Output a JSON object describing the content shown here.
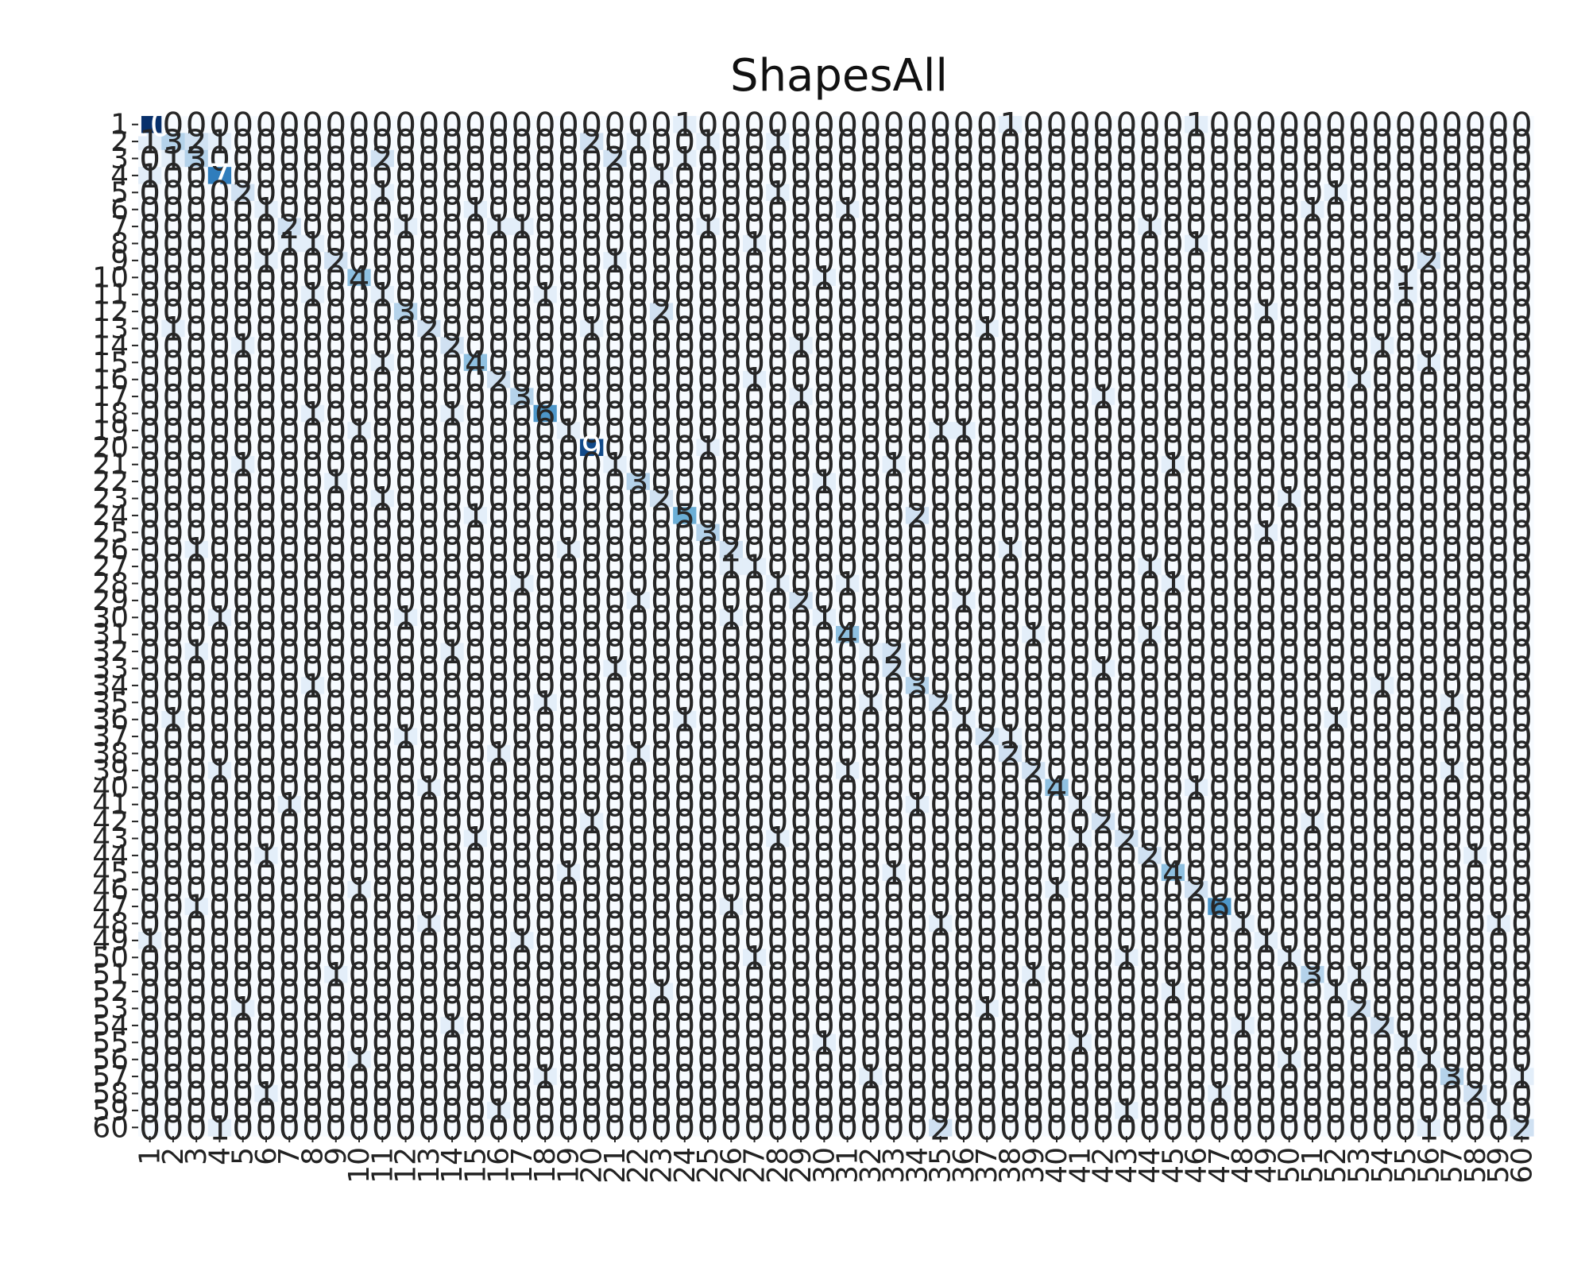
{
  "chart_data": {
    "type": "heatmap",
    "title": "ShapesAll",
    "xlabel": "",
    "ylabel": "",
    "n_classes": 60,
    "x_ticks": [
      "1",
      "2",
      "3",
      "4",
      "5",
      "6",
      "7",
      "8",
      "9",
      "10",
      "11",
      "12",
      "13",
      "14",
      "15",
      "16",
      "17",
      "18",
      "19",
      "20",
      "21",
      "22",
      "23",
      "24",
      "25",
      "26",
      "27",
      "28",
      "29",
      "30",
      "31",
      "32",
      "33",
      "34",
      "35",
      "36",
      "37",
      "38",
      "39",
      "40",
      "41",
      "42",
      "43",
      "44",
      "45",
      "46",
      "47",
      "48",
      "49",
      "50",
      "51",
      "52",
      "53",
      "54",
      "55",
      "56",
      "57",
      "58",
      "59",
      "60"
    ],
    "y_ticks": [
      "1",
      "2",
      "3",
      "4",
      "5",
      "6",
      "7",
      "8",
      "9",
      "10",
      "11",
      "12",
      "13",
      "14",
      "15",
      "16",
      "17",
      "18",
      "19",
      "20",
      "21",
      "22",
      "23",
      "24",
      "25",
      "26",
      "27",
      "28",
      "29",
      "30",
      "31",
      "32",
      "33",
      "34",
      "35",
      "36",
      "37",
      "38",
      "39",
      "40",
      "41",
      "42",
      "43",
      "44",
      "45",
      "46",
      "47",
      "48",
      "49",
      "50",
      "51",
      "52",
      "53",
      "54",
      "55",
      "56",
      "57",
      "58",
      "59",
      "60"
    ],
    "colormap": [
      "#f7fbff",
      "#c6dbef",
      "#6baed6",
      "#2171b5",
      "#08306b"
    ],
    "vmin": 0,
    "vmax": 10,
    "grid": false,
    "legend": "none",
    "annotated": true,
    "diagonal": [
      10,
      3,
      3,
      7,
      2,
      1,
      2,
      1,
      2,
      4,
      1,
      3,
      2,
      2,
      4,
      2,
      3,
      6,
      1,
      9,
      1,
      3,
      2,
      5,
      3,
      2,
      1,
      1,
      2,
      1,
      4,
      1,
      2,
      3,
      2,
      1,
      2,
      2,
      2,
      4,
      1,
      2,
      2,
      2,
      4,
      2,
      6,
      1,
      1,
      1,
      3,
      1,
      2,
      2,
      1,
      1,
      3,
      2,
      1,
      2
    ],
    "off_diagonal": [
      {
        "row": 1,
        "col": 24,
        "value": 1
      },
      {
        "row": 1,
        "col": 38,
        "value": 1
      },
      {
        "row": 1,
        "col": 46,
        "value": 1
      },
      {
        "row": 2,
        "col": 1,
        "value": 1
      },
      {
        "row": 2,
        "col": 3,
        "value": 2
      },
      {
        "row": 2,
        "col": 4,
        "value": 1
      },
      {
        "row": 2,
        "col": 20,
        "value": 2
      },
      {
        "row": 2,
        "col": 22,
        "value": 1
      },
      {
        "row": 2,
        "col": 25,
        "value": 1
      },
      {
        "row": 2,
        "col": 28,
        "value": 1
      },
      {
        "row": 3,
        "col": 2,
        "value": 1
      },
      {
        "row": 3,
        "col": 11,
        "value": 2
      },
      {
        "row": 3,
        "col": 21,
        "value": 2
      },
      {
        "row": 3,
        "col": 24,
        "value": 1
      },
      {
        "row": 4,
        "col": 1,
        "value": 1
      },
      {
        "row": 4,
        "col": 23,
        "value": 1
      },
      {
        "row": 5,
        "col": 11,
        "value": 1
      },
      {
        "row": 5,
        "col": 28,
        "value": 1
      },
      {
        "row": 5,
        "col": 52,
        "value": 1
      },
      {
        "row": 6,
        "col": 15,
        "value": 1
      },
      {
        "row": 6,
        "col": 31,
        "value": 1
      },
      {
        "row": 6,
        "col": 51,
        "value": 1
      },
      {
        "row": 7,
        "col": 12,
        "value": 1
      },
      {
        "row": 7,
        "col": 16,
        "value": 1
      },
      {
        "row": 7,
        "col": 17,
        "value": 1
      },
      {
        "row": 7,
        "col": 25,
        "value": 1
      },
      {
        "row": 7,
        "col": 44,
        "value": 1
      },
      {
        "row": 8,
        "col": 7,
        "value": 1
      },
      {
        "row": 8,
        "col": 27,
        "value": 1
      },
      {
        "row": 8,
        "col": 46,
        "value": 1
      },
      {
        "row": 9,
        "col": 6,
        "value": 1
      },
      {
        "row": 9,
        "col": 21,
        "value": 1
      },
      {
        "row": 9,
        "col": 56,
        "value": 2
      },
      {
        "row": 10,
        "col": 30,
        "value": 1
      },
      {
        "row": 10,
        "col": 55,
        "value": 1
      },
      {
        "row": 11,
        "col": 8,
        "value": 1
      },
      {
        "row": 11,
        "col": 18,
        "value": 1
      },
      {
        "row": 11,
        "col": 55,
        "value": 1
      },
      {
        "row": 12,
        "col": 23,
        "value": 2
      },
      {
        "row": 12,
        "col": 49,
        "value": 1
      },
      {
        "row": 13,
        "col": 2,
        "value": 1
      },
      {
        "row": 13,
        "col": 20,
        "value": 1
      },
      {
        "row": 13,
        "col": 37,
        "value": 1
      },
      {
        "row": 14,
        "col": 5,
        "value": 1
      },
      {
        "row": 14,
        "col": 29,
        "value": 1
      },
      {
        "row": 14,
        "col": 54,
        "value": 1
      },
      {
        "row": 15,
        "col": 11,
        "value": 1
      },
      {
        "row": 15,
        "col": 56,
        "value": 1
      },
      {
        "row": 16,
        "col": 27,
        "value": 1
      },
      {
        "row": 16,
        "col": 53,
        "value": 1
      },
      {
        "row": 17,
        "col": 29,
        "value": 1
      },
      {
        "row": 17,
        "col": 42,
        "value": 1
      },
      {
        "row": 18,
        "col": 8,
        "value": 1
      },
      {
        "row": 18,
        "col": 14,
        "value": 1
      },
      {
        "row": 19,
        "col": 10,
        "value": 1
      },
      {
        "row": 19,
        "col": 35,
        "value": 1
      },
      {
        "row": 19,
        "col": 36,
        "value": 1
      },
      {
        "row": 20,
        "col": 25,
        "value": 1
      },
      {
        "row": 21,
        "col": 5,
        "value": 1
      },
      {
        "row": 21,
        "col": 33,
        "value": 1
      },
      {
        "row": 21,
        "col": 45,
        "value": 1
      },
      {
        "row": 22,
        "col": 9,
        "value": 1
      },
      {
        "row": 22,
        "col": 30,
        "value": 1
      },
      {
        "row": 23,
        "col": 11,
        "value": 1
      },
      {
        "row": 23,
        "col": 50,
        "value": 1
      },
      {
        "row": 24,
        "col": 15,
        "value": 1
      },
      {
        "row": 24,
        "col": 34,
        "value": 2
      },
      {
        "row": 25,
        "col": 49,
        "value": 1
      },
      {
        "row": 26,
        "col": 3,
        "value": 1
      },
      {
        "row": 26,
        "col": 19,
        "value": 1
      },
      {
        "row": 26,
        "col": 38,
        "value": 1
      },
      {
        "row": 27,
        "col": 26,
        "value": 1
      },
      {
        "row": 27,
        "col": 44,
        "value": 1
      },
      {
        "row": 28,
        "col": 17,
        "value": 1
      },
      {
        "row": 28,
        "col": 31,
        "value": 1
      },
      {
        "row": 28,
        "col": 45,
        "value": 1
      },
      {
        "row": 29,
        "col": 22,
        "value": 1
      },
      {
        "row": 29,
        "col": 36,
        "value": 1
      },
      {
        "row": 30,
        "col": 4,
        "value": 1
      },
      {
        "row": 30,
        "col": 12,
        "value": 1
      },
      {
        "row": 30,
        "col": 26,
        "value": 1
      },
      {
        "row": 31,
        "col": 39,
        "value": 1
      },
      {
        "row": 31,
        "col": 44,
        "value": 1
      },
      {
        "row": 32,
        "col": 3,
        "value": 1
      },
      {
        "row": 32,
        "col": 14,
        "value": 1
      },
      {
        "row": 32,
        "col": 33,
        "value": 2
      },
      {
        "row": 33,
        "col": 21,
        "value": 1
      },
      {
        "row": 33,
        "col": 42,
        "value": 1
      },
      {
        "row": 34,
        "col": 8,
        "value": 1
      },
      {
        "row": 34,
        "col": 54,
        "value": 1
      },
      {
        "row": 35,
        "col": 18,
        "value": 1
      },
      {
        "row": 35,
        "col": 32,
        "value": 1
      },
      {
        "row": 35,
        "col": 57,
        "value": 1
      },
      {
        "row": 36,
        "col": 2,
        "value": 1
      },
      {
        "row": 36,
        "col": 24,
        "value": 1
      },
      {
        "row": 36,
        "col": 52,
        "value": 1
      },
      {
        "row": 37,
        "col": 12,
        "value": 1
      },
      {
        "row": 37,
        "col": 38,
        "value": 1
      },
      {
        "row": 38,
        "col": 16,
        "value": 1
      },
      {
        "row": 38,
        "col": 22,
        "value": 1
      },
      {
        "row": 39,
        "col": 4,
        "value": 1
      },
      {
        "row": 39,
        "col": 31,
        "value": 1
      },
      {
        "row": 39,
        "col": 57,
        "value": 1
      },
      {
        "row": 40,
        "col": 13,
        "value": 1
      },
      {
        "row": 40,
        "col": 46,
        "value": 1
      },
      {
        "row": 41,
        "col": 7,
        "value": 1
      },
      {
        "row": 41,
        "col": 34,
        "value": 1
      },
      {
        "row": 42,
        "col": 20,
        "value": 1
      },
      {
        "row": 42,
        "col": 51,
        "value": 1
      },
      {
        "row": 43,
        "col": 15,
        "value": 1
      },
      {
        "row": 43,
        "col": 28,
        "value": 1
      },
      {
        "row": 43,
        "col": 41,
        "value": 1
      },
      {
        "row": 44,
        "col": 6,
        "value": 1
      },
      {
        "row": 44,
        "col": 58,
        "value": 1
      },
      {
        "row": 45,
        "col": 19,
        "value": 1
      },
      {
        "row": 45,
        "col": 33,
        "value": 1
      },
      {
        "row": 46,
        "col": 10,
        "value": 1
      },
      {
        "row": 46,
        "col": 40,
        "value": 1
      },
      {
        "row": 47,
        "col": 3,
        "value": 1
      },
      {
        "row": 47,
        "col": 26,
        "value": 1
      },
      {
        "row": 48,
        "col": 13,
        "value": 1
      },
      {
        "row": 48,
        "col": 35,
        "value": 1
      },
      {
        "row": 48,
        "col": 59,
        "value": 1
      },
      {
        "row": 49,
        "col": 1,
        "value": 1
      },
      {
        "row": 49,
        "col": 17,
        "value": 1
      },
      {
        "row": 50,
        "col": 27,
        "value": 1
      },
      {
        "row": 50,
        "col": 43,
        "value": 1
      },
      {
        "row": 51,
        "col": 9,
        "value": 1
      },
      {
        "row": 51,
        "col": 39,
        "value": 1
      },
      {
        "row": 51,
        "col": 53,
        "value": 1
      },
      {
        "row": 52,
        "col": 23,
        "value": 1
      },
      {
        "row": 52,
        "col": 45,
        "value": 1
      },
      {
        "row": 53,
        "col": 5,
        "value": 1
      },
      {
        "row": 53,
        "col": 37,
        "value": 1
      },
      {
        "row": 54,
        "col": 14,
        "value": 1
      },
      {
        "row": 54,
        "col": 48,
        "value": 1
      },
      {
        "row": 55,
        "col": 30,
        "value": 1
      },
      {
        "row": 55,
        "col": 41,
        "value": 1
      },
      {
        "row": 56,
        "col": 10,
        "value": 1
      },
      {
        "row": 56,
        "col": 50,
        "value": 1
      },
      {
        "row": 57,
        "col": 18,
        "value": 1
      },
      {
        "row": 57,
        "col": 32,
        "value": 1
      },
      {
        "row": 57,
        "col": 60,
        "value": 1
      },
      {
        "row": 58,
        "col": 6,
        "value": 1
      },
      {
        "row": 58,
        "col": 47,
        "value": 1
      },
      {
        "row": 59,
        "col": 16,
        "value": 1
      },
      {
        "row": 59,
        "col": 43,
        "value": 1
      },
      {
        "row": 60,
        "col": 4,
        "value": 1
      },
      {
        "row": 60,
        "col": 35,
        "value": 2
      },
      {
        "row": 60,
        "col": 56,
        "value": 1
      }
    ]
  }
}
